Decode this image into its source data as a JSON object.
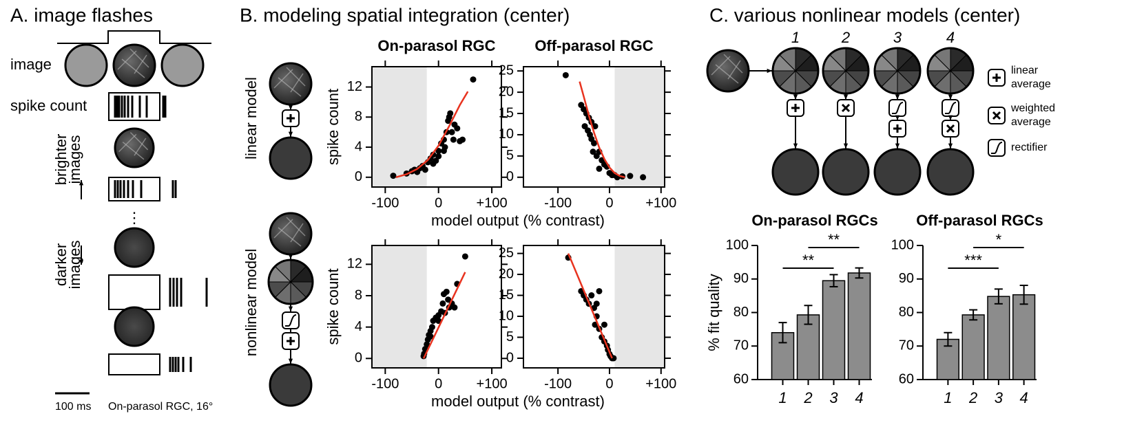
{
  "panel_a": {
    "title": "A. image flashes",
    "image_label": "image",
    "spike_label": "spike count",
    "brighter": [
      "brighter",
      "images"
    ],
    "darker": [
      "darker",
      "images"
    ],
    "ellipsis": "⋮",
    "scale_label": "100 ms",
    "cell_label": "On-parasol RGC, 16°"
  },
  "panel_b": {
    "title": "B. modeling spatial integration (center)",
    "row_labels": [
      "linear model",
      "nonlinear model"
    ]
  },
  "panel_c": {
    "title": "C. various nonlinear models (center)",
    "model_numbers": [
      "1",
      "2",
      "3",
      "4"
    ],
    "legend": [
      [
        "linear",
        "average"
      ],
      [
        "weighted",
        "average"
      ],
      [
        "rectifier"
      ]
    ]
  },
  "chart_data": [
    {
      "type": "scatter",
      "title": "On-parasol RGC",
      "ylabel": "spike count",
      "xlabel": "model output (% contrast)",
      "color": "#000000",
      "x": [
        -85,
        -60,
        -50,
        -45,
        -40,
        -35,
        -30,
        -25,
        -20,
        -15,
        -10,
        -5,
        0,
        5,
        10,
        12,
        15,
        18,
        20,
        22,
        25,
        28,
        30,
        35,
        40,
        45,
        -10,
        0,
        10,
        65
      ],
      "values": [
        0.2,
        0.5,
        0.8,
        1,
        0.7,
        1.2,
        1.5,
        1,
        2,
        2.5,
        3,
        2.2,
        3.5,
        4.5,
        5,
        4,
        6,
        7.5,
        8,
        8.5,
        6,
        5,
        7,
        6.5,
        4.8,
        5,
        1.8,
        2.8,
        3.5,
        13
      ],
      "fit": {
        "x": [
          -80,
          -60,
          -40,
          -20,
          0,
          20,
          40,
          55
        ],
        "values": [
          0,
          0.4,
          1.1,
          2.3,
          4.2,
          6.8,
          9.6,
          11.4
        ],
        "color": "#e8331f"
      },
      "shaded_x": [
        -125,
        -22
      ],
      "xlim": [
        -125,
        118
      ],
      "ylim": [
        -1.3,
        14.7
      ],
      "xticks": [
        -100,
        0,
        {
          "value": 100,
          "label": "+100"
        }
      ],
      "yticks": [
        0,
        4,
        8,
        12
      ]
    },
    {
      "type": "scatter",
      "title": "Off-parasol RGC",
      "color": "#000000",
      "x": [
        -85,
        -55,
        -50,
        -45,
        -40,
        -48,
        -42,
        -38,
        -35,
        -30,
        -32,
        -25,
        -20,
        -15,
        -10,
        -5,
        0,
        5,
        10,
        15,
        25,
        40,
        -28,
        -35,
        -20,
        65
      ],
      "values": [
        24,
        17,
        16,
        15,
        14,
        12,
        11,
        10,
        9,
        8,
        6,
        5,
        6,
        4,
        3,
        2.5,
        1,
        0.5,
        0.5,
        0,
        0.2,
        0.3,
        12,
        13,
        2,
        0
      ],
      "fit": {
        "x": [
          -58,
          -50,
          -40,
          -30,
          -20,
          -10,
          0,
          10,
          20,
          30
        ],
        "values": [
          22.5,
          19,
          14.5,
          10.5,
          7,
          4.3,
          2.3,
          1,
          0.3,
          0
        ],
        "color": "#e8331f"
      },
      "shaded_x": [
        10,
        107
      ],
      "xlim": [
        -167,
        107
      ],
      "ylim": [
        -2.3,
        26
      ],
      "xticks": [
        -100,
        0,
        {
          "value": 100,
          "label": "+100"
        }
      ],
      "yticks": [
        0,
        5,
        10,
        15,
        20,
        25
      ]
    },
    {
      "type": "scatter",
      "ylabel": "spike count",
      "xlabel": "model output (% contrast)",
      "color": "#000000",
      "x": [
        -28,
        -27,
        -25,
        -22,
        -20,
        -18,
        -15,
        -12,
        -10,
        -5,
        0,
        5,
        8,
        10,
        15,
        18,
        20,
        25,
        30,
        35,
        50,
        -15,
        0,
        12
      ],
      "values": [
        0.3,
        0.6,
        1.2,
        1.8,
        2.4,
        3,
        3.5,
        4,
        4.8,
        5.2,
        5.5,
        6,
        7,
        8.2,
        8.5,
        7.5,
        6.5,
        7,
        6.5,
        9.5,
        13,
        2.8,
        4.8,
        5.8
      ],
      "fit": {
        "x": [
          -28,
          50
        ],
        "values": [
          0,
          11
        ],
        "color": "#e8331f"
      },
      "shaded_x": [
        -125,
        -22
      ],
      "xlim": [
        -125,
        118
      ],
      "ylim": [
        -1.2,
        14.4
      ],
      "xticks": [
        -100,
        0,
        {
          "value": 100,
          "label": "+100"
        }
      ],
      "yticks": [
        0,
        4,
        8,
        12
      ]
    },
    {
      "type": "scatter",
      "color": "#000000",
      "x": [
        -80,
        -55,
        -50,
        -45,
        -40,
        -35,
        -30,
        -25,
        -28,
        -20,
        -15,
        -10,
        -5,
        -3,
        0,
        2,
        5,
        8,
        -20,
        -25,
        -10
      ],
      "values": [
        24,
        16,
        15,
        14,
        13,
        15,
        12,
        10,
        8,
        7,
        5,
        4,
        3,
        2,
        1,
        0.5,
        0,
        0,
        16,
        13,
        8
      ],
      "fit": {
        "x": [
          -80,
          5
        ],
        "values": [
          25,
          0
        ],
        "color": "#e8331f"
      },
      "shaded_x": [
        10,
        107
      ],
      "xlim": [
        -167,
        107
      ],
      "ylim": [
        -2.3,
        26.9
      ],
      "xticks": [
        -100,
        0,
        {
          "value": 100,
          "label": "+100"
        }
      ],
      "yticks": [
        0,
        5,
        10,
        15,
        20,
        25
      ]
    },
    {
      "type": "bar",
      "title": "On-parasol RGCs",
      "ylabel": "% fit quality",
      "color": "#8c8c8c",
      "categories": [
        "1",
        "2",
        "3",
        "4"
      ],
      "values": [
        74,
        79.3,
        89.5,
        91.8
      ],
      "errors": [
        3,
        2.8,
        1.8,
        1.5
      ],
      "ylim": [
        60,
        100
      ],
      "yticks": [
        60,
        70,
        80,
        90,
        100
      ],
      "significance": [
        {
          "between": [
            0,
            2
          ],
          "label": "**"
        },
        {
          "between": [
            1,
            3
          ],
          "label": "**"
        }
      ]
    },
    {
      "type": "bar",
      "title": "Off-parasol RGCs",
      "color": "#8c8c8c",
      "categories": [
        "1",
        "2",
        "3",
        "4"
      ],
      "values": [
        72,
        79.3,
        84.8,
        85.3
      ],
      "errors": [
        2,
        1.5,
        2.2,
        2.8
      ],
      "ylim": [
        60,
        100
      ],
      "yticks": [
        60,
        70,
        80,
        90,
        100
      ],
      "significance": [
        {
          "between": [
            0,
            2
          ],
          "label": "***"
        },
        {
          "between": [
            1,
            3
          ],
          "label": "*"
        }
      ]
    }
  ]
}
